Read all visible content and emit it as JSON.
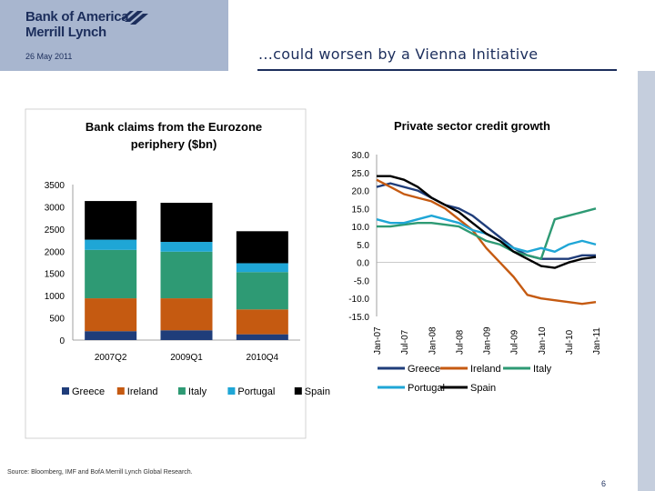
{
  "header": {
    "logo_line1": "Bank of America",
    "logo_line2": "Merrill Lynch",
    "date": "26 May 2011",
    "slide_title": "...could worsen by a Vienna Initiative"
  },
  "footer": {
    "source": "Source: Bloomberg, IMF and BofA Merrill Lynch Global Research.",
    "page_number": "6"
  },
  "colors": {
    "brand_navy": "#1c2e5c",
    "header_panel": "#a8b6cf",
    "greece": "#1f3d7a",
    "ireland": "#c55a11",
    "italy": "#2e9a74",
    "portugal": "#1fa6d6",
    "spain": "#000000"
  },
  "chart_data": [
    {
      "type": "bar",
      "stacked": true,
      "title": "Bank claims from the Eurozone periphery ($bn)",
      "categories": [
        "2007Q2",
        "2009Q1",
        "2010Q4"
      ],
      "series": [
        {
          "name": "Greece",
          "color": "#1f3d7a",
          "values": [
            200,
            220,
            130
          ]
        },
        {
          "name": "Ireland",
          "color": "#c55a11",
          "values": [
            740,
            720,
            560
          ]
        },
        {
          "name": "Italy",
          "color": "#2e9a74",
          "values": [
            1090,
            1050,
            840
          ]
        },
        {
          "name": "Portugal",
          "color": "#1fa6d6",
          "values": [
            230,
            220,
            200
          ]
        },
        {
          "name": "Spain",
          "color": "#000000",
          "values": [
            870,
            880,
            720
          ]
        }
      ],
      "yticks": [
        "0",
        "500",
        "1000",
        "1500",
        "2000",
        "2500",
        "3000",
        "3500"
      ],
      "ylim": [
        0,
        3500
      ],
      "legend": "bottom"
    },
    {
      "type": "line",
      "title": "Private sector credit growth",
      "x": [
        "Jan-07",
        "Apr-07",
        "Jul-07",
        "Oct-07",
        "Jan-08",
        "Apr-08",
        "Jul-08",
        "Oct-08",
        "Jan-09",
        "Apr-09",
        "Jul-09",
        "Oct-09",
        "Jan-10",
        "Apr-10",
        "Jul-10",
        "Oct-10",
        "Jan-11"
      ],
      "xticks": [
        "Jan-07",
        "Jul-07",
        "Jan-08",
        "Jul-08",
        "Jan-09",
        "Jul-09",
        "Jan-10",
        "Jul-10",
        "Jan-11"
      ],
      "yticks": [
        "30.0",
        "25.0",
        "20.0",
        "15.0",
        "10.0",
        "5.0",
        "0.0",
        "-5.0",
        "-10.0",
        "-15.0"
      ],
      "ylim": [
        -15,
        30
      ],
      "series": [
        {
          "name": "Greece",
          "color": "#1f3d7a",
          "values": [
            21,
            22,
            21,
            20,
            18,
            16,
            15,
            13,
            10,
            7,
            4,
            2,
            1,
            1,
            1,
            2,
            2
          ]
        },
        {
          "name": "Ireland",
          "color": "#c55a11",
          "values": [
            23,
            21,
            19,
            18,
            17,
            15,
            12,
            9,
            4,
            0,
            -4,
            -9,
            -10,
            -10.5,
            -11,
            -11.5,
            -11
          ]
        },
        {
          "name": "Italy",
          "color": "#2e9a74",
          "values": [
            10,
            10,
            10.5,
            11,
            11,
            10.5,
            10,
            8,
            6,
            5,
            3,
            2,
            1,
            12,
            13,
            14,
            15
          ]
        },
        {
          "name": "Portugal",
          "color": "#1fa6d6",
          "values": [
            12,
            11,
            11,
            12,
            13,
            12,
            11,
            9,
            8,
            6,
            4,
            3,
            4,
            3,
            5,
            6,
            5
          ]
        },
        {
          "name": "Spain",
          "color": "#000000",
          "values": [
            24,
            24,
            23,
            21,
            18,
            16,
            14,
            11,
            8,
            6,
            3,
            1,
            -1,
            -1.5,
            0,
            1,
            1.5
          ]
        }
      ],
      "legend": "bottom"
    }
  ]
}
